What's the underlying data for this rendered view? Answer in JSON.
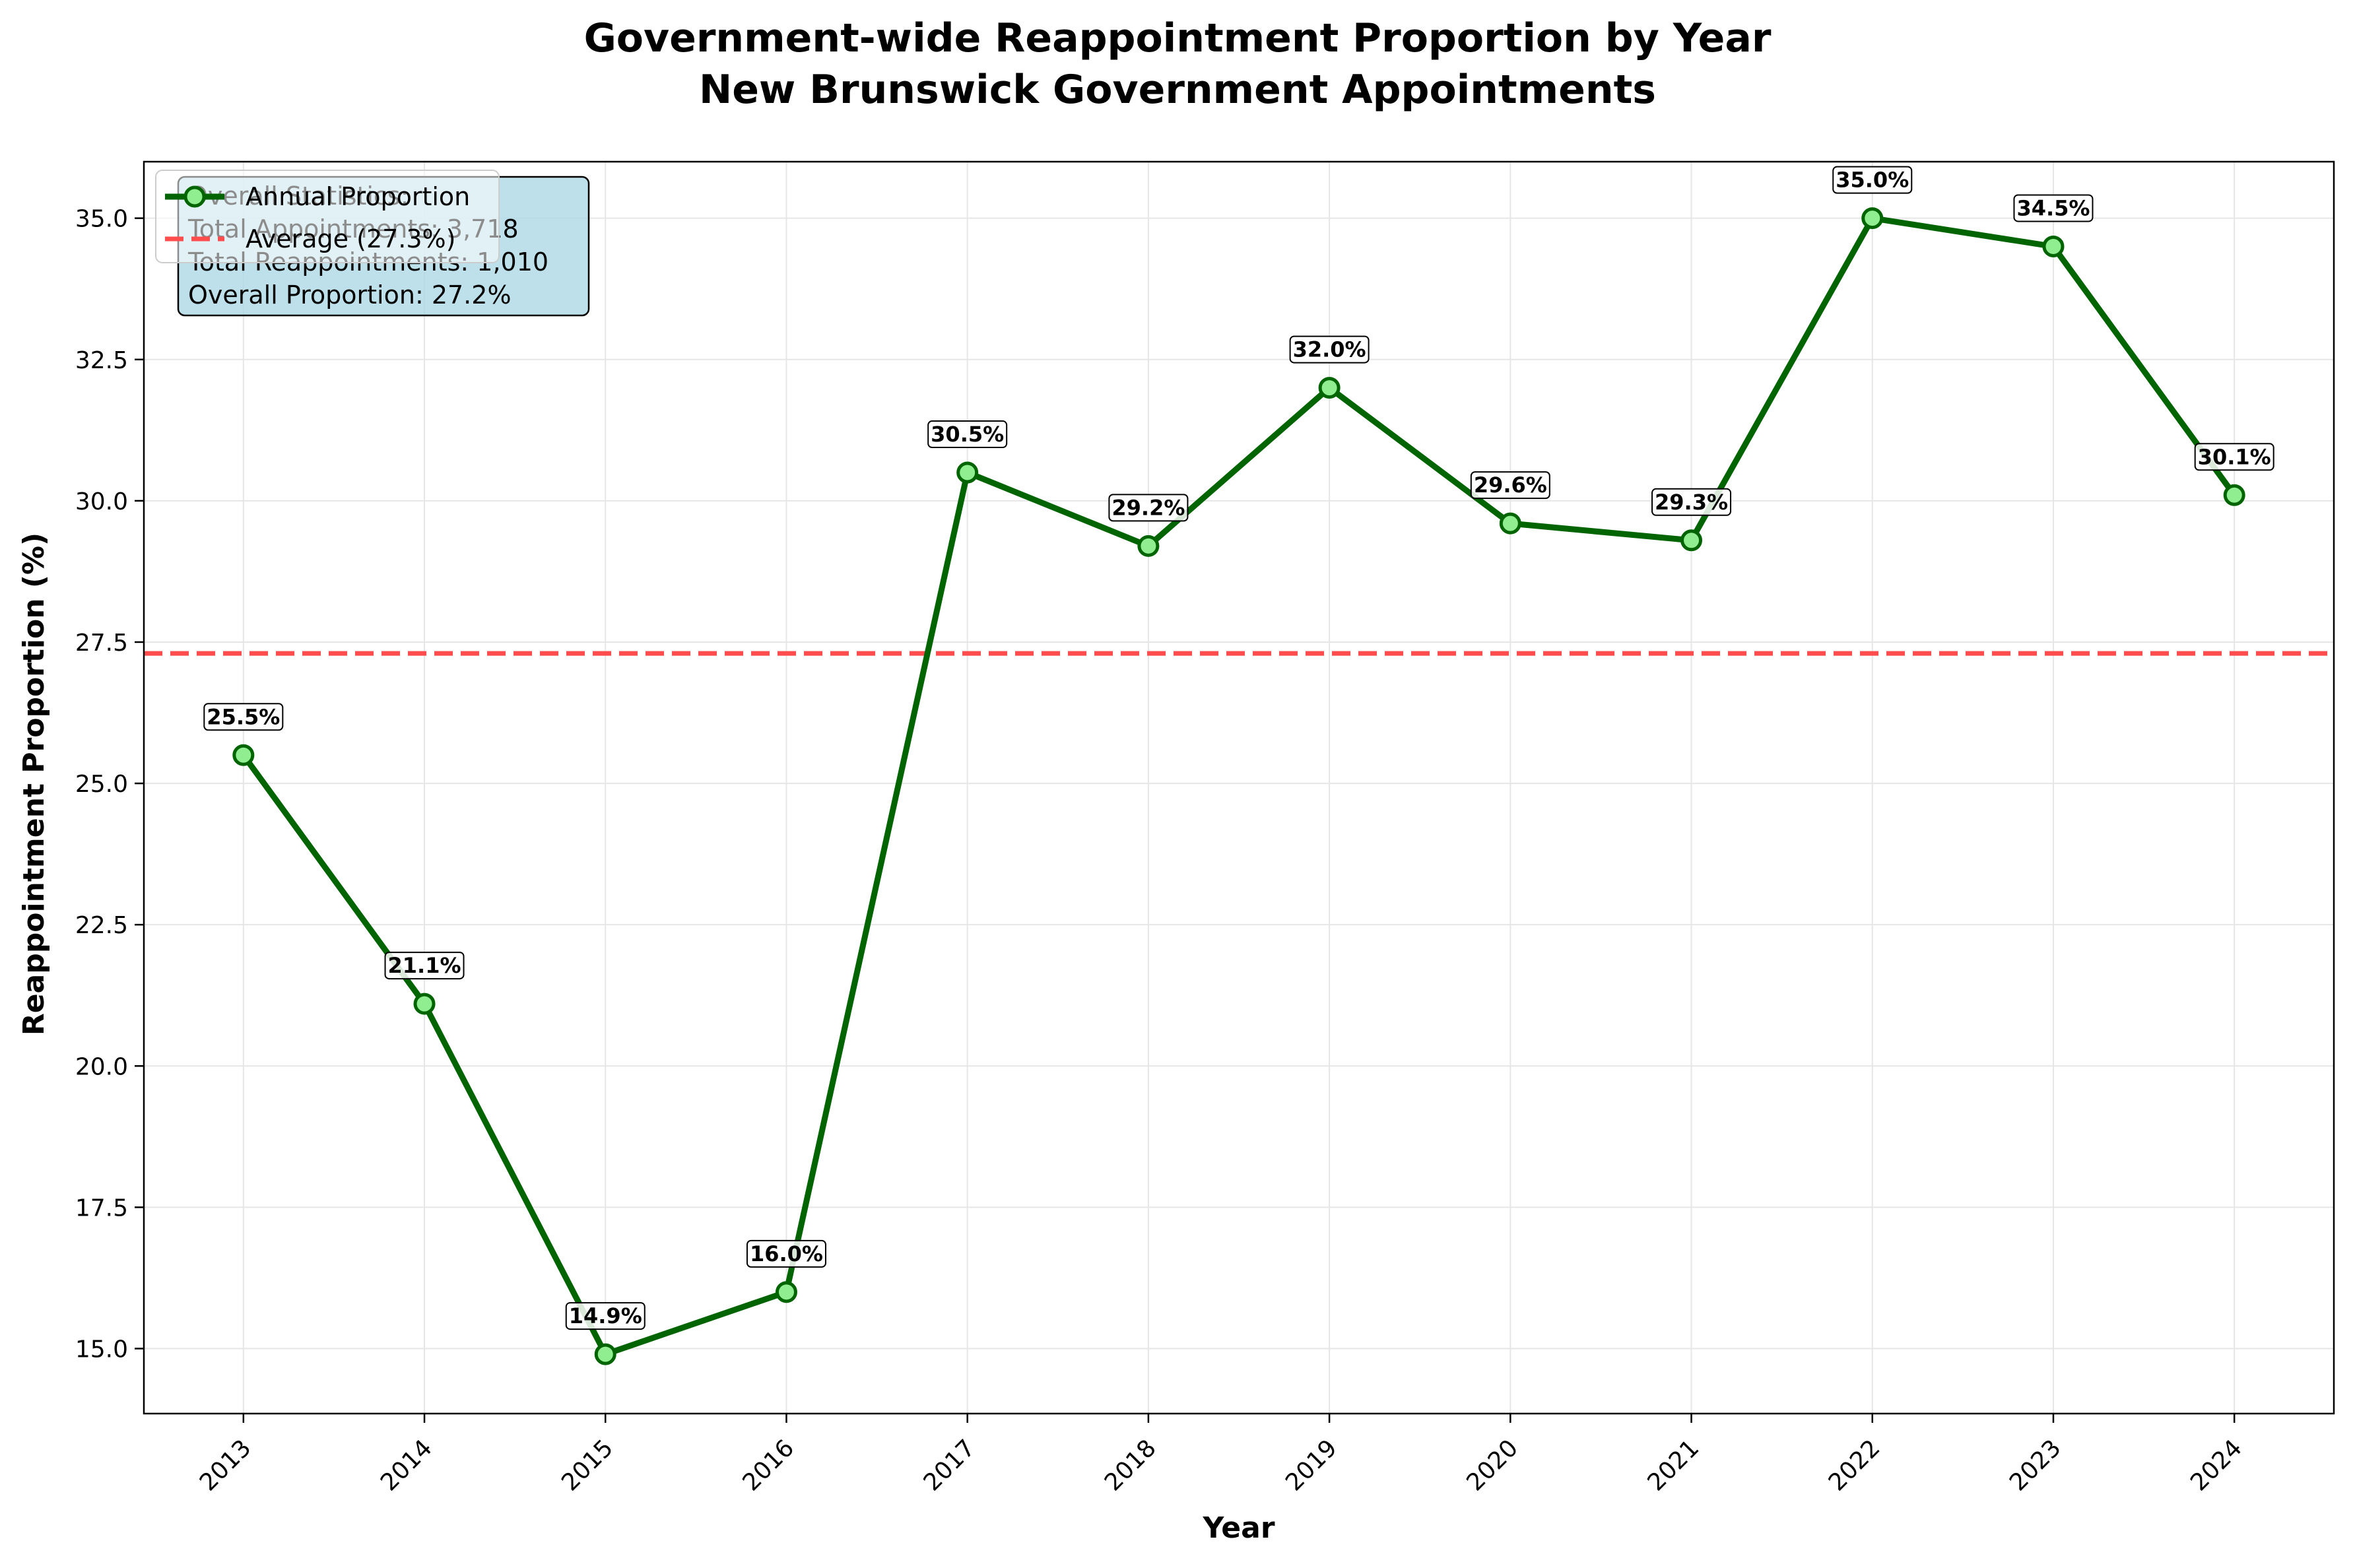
{
  "chart_data": {
    "type": "line",
    "title": "Government-wide Reappointment Proportion by Year",
    "subtitle": "New Brunswick Government Appointments",
    "xlabel": "Year",
    "ylabel": "Reappointment Proportion (%)",
    "x": [
      2013,
      2014,
      2015,
      2016,
      2017,
      2018,
      2019,
      2020,
      2021,
      2022,
      2023,
      2024
    ],
    "series": [
      {
        "name": "Annual Proportion",
        "values": [
          25.5,
          21.1,
          14.9,
          16.0,
          30.5,
          29.2,
          32.0,
          29.6,
          29.3,
          35.0,
          34.5,
          30.1
        ],
        "labels": [
          "25.5%",
          "21.1%",
          "14.9%",
          "16.0%",
          "30.5%",
          "29.2%",
          "32.0%",
          "29.6%",
          "29.3%",
          "35.0%",
          "34.5%",
          "30.1%"
        ],
        "color": "#006400",
        "marker_fill": "#90ee90"
      }
    ],
    "reference_line": {
      "name": "Average (27.3%)",
      "value": 27.3,
      "color": "#ff4d4d",
      "style": "dashed"
    },
    "xlim": [
      2012.45,
      2024.55
    ],
    "ylim": [
      13.85,
      36.0
    ],
    "yticks": [
      15.0,
      17.5,
      20.0,
      22.5,
      25.0,
      27.5,
      30.0,
      32.5,
      35.0
    ],
    "ytick_labels": [
      "15.0",
      "17.5",
      "20.0",
      "22.5",
      "25.0",
      "27.5",
      "30.0",
      "32.5",
      "35.0"
    ],
    "xtick_labels": [
      "2013",
      "2014",
      "2015",
      "2016",
      "2017",
      "2018",
      "2019",
      "2020",
      "2021",
      "2022",
      "2023",
      "2024"
    ],
    "grid": true,
    "legend_placement": "top-left",
    "stats_box": {
      "title": "Overall Statistics:",
      "lines": [
        "Total Appointments: 3,718",
        "Total Reappointments: 1,010",
        "Overall Proportion: 27.2%"
      ],
      "color": "#add8e6"
    }
  }
}
